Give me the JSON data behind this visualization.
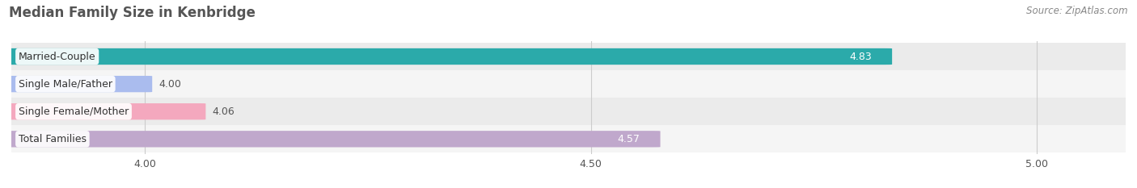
{
  "title": "Median Family Size in Kenbridge",
  "source": "Source: ZipAtlas.com",
  "categories": [
    "Married-Couple",
    "Single Male/Father",
    "Single Female/Mother",
    "Total Families"
  ],
  "values": [
    4.83,
    4.0,
    4.06,
    4.57
  ],
  "bar_colors": [
    "#2BAAAA",
    "#AABCEE",
    "#F4A8BE",
    "#C0A8CC"
  ],
  "xlim": [
    3.85,
    5.1
  ],
  "xticks": [
    4.0,
    4.5,
    5.0
  ],
  "bar_height": 0.58,
  "bg_row_colors": [
    "#EBEBEB",
    "#F5F5F5"
  ],
  "value_color_inside": "#FFFFFF",
  "value_color_outside": "#555555",
  "title_color": "#555555",
  "source_color": "#888888",
  "label_text_color": "#333333"
}
